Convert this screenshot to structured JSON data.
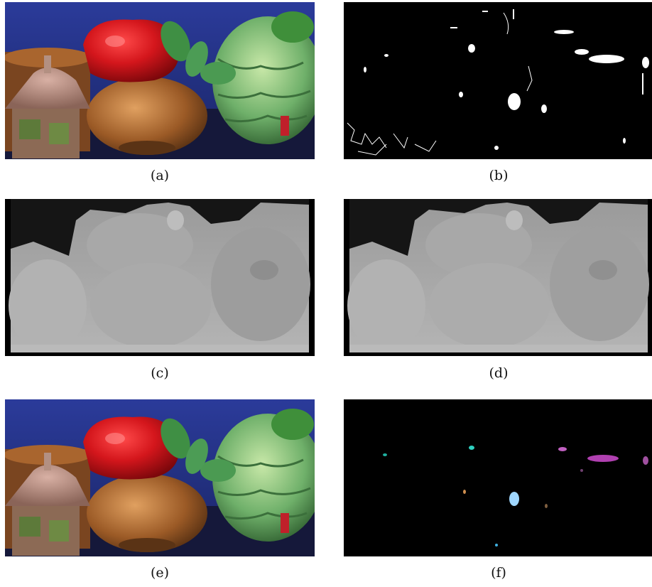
{
  "figure": {
    "panels": [
      {
        "id": "a",
        "caption": "(a)"
      },
      {
        "id": "b",
        "caption": "(b)"
      },
      {
        "id": "c",
        "caption": "(c)"
      },
      {
        "id": "d",
        "caption": "(d)"
      },
      {
        "id": "e",
        "caption": "(e)"
      },
      {
        "id": "f",
        "caption": "(f)"
      }
    ]
  }
}
